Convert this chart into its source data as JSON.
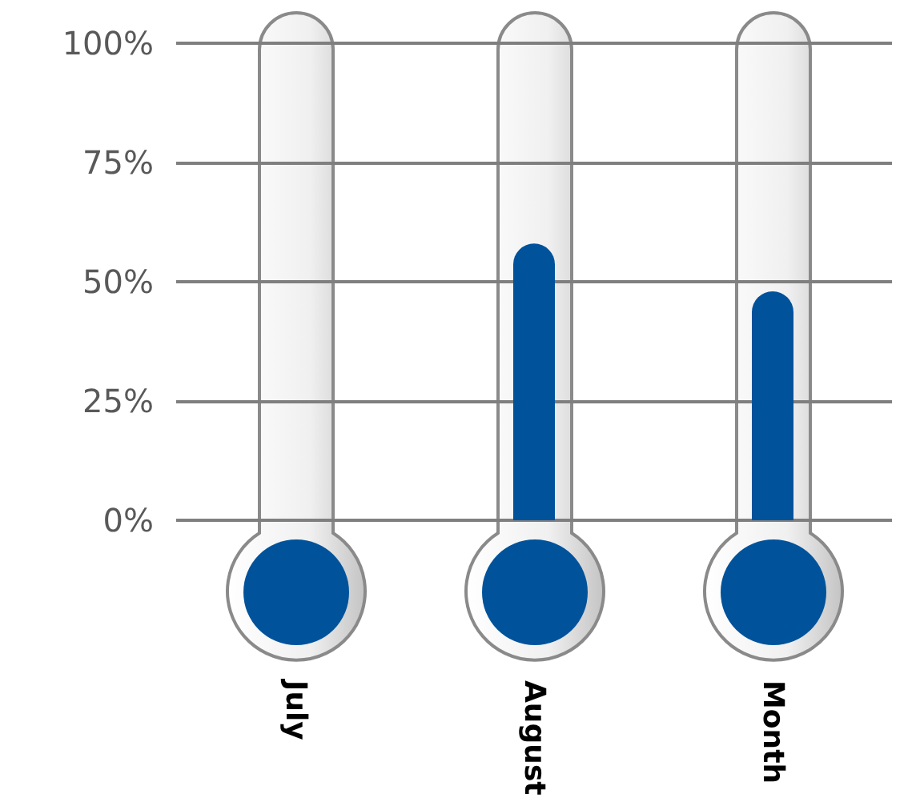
{
  "chart_data": {
    "type": "bar",
    "categories": [
      "July",
      "August",
      "Month"
    ],
    "series": [
      {
        "color": "#00529b",
        "values": [
          0,
          58,
          48
        ]
      }
    ],
    "ylim": [
      0,
      100
    ],
    "yticks": [
      {
        "value": 0,
        "label": "0%"
      },
      {
        "value": 25,
        "label": "25%"
      },
      {
        "value": 50,
        "label": "50%"
      },
      {
        "value": 75,
        "label": "75%"
      },
      {
        "value": 100,
        "label": "100%"
      }
    ],
    "grid": "y"
  }
}
